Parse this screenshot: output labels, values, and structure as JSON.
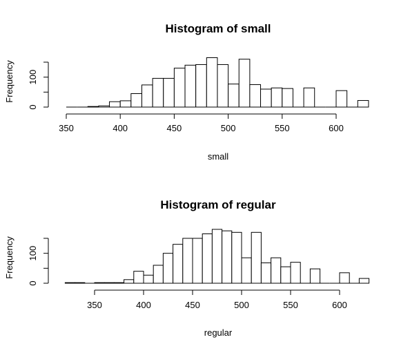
{
  "chart_data": [
    {
      "type": "bar",
      "title": "Histogram of small",
      "xlabel": "small",
      "ylabel": "Frequency",
      "bin_width": 10,
      "bins_start": [
        350,
        360,
        370,
        380,
        390,
        400,
        410,
        420,
        430,
        440,
        450,
        460,
        470,
        480,
        490,
        500,
        510,
        520,
        530,
        540,
        550,
        560,
        570,
        580,
        590,
        600,
        610,
        620
      ],
      "values": [
        0,
        0,
        2,
        4,
        18,
        21,
        45,
        74,
        96,
        96,
        130,
        140,
        142,
        165,
        142,
        77,
        160,
        75,
        60,
        64,
        62,
        0,
        64,
        0,
        0,
        55,
        0,
        22
      ],
      "x_ticks": [
        350,
        400,
        450,
        500,
        550,
        600
      ],
      "y_ticks": [
        0,
        100
      ],
      "xlim": [
        350,
        630
      ],
      "ylim": [
        0,
        150
      ]
    },
    {
      "type": "bar",
      "title": "Histogram of regular",
      "xlabel": "regular",
      "ylabel": "Frequency",
      "bin_width": 10,
      "bins_start": [
        320,
        330,
        340,
        350,
        360,
        370,
        380,
        390,
        400,
        410,
        420,
        430,
        440,
        450,
        460,
        470,
        480,
        490,
        500,
        510,
        520,
        530,
        540,
        550,
        560,
        570,
        580,
        590,
        600,
        610,
        620
      ],
      "values": [
        2,
        2,
        0,
        2,
        2,
        2,
        12,
        40,
        27,
        60,
        100,
        130,
        150,
        150,
        165,
        180,
        175,
        170,
        85,
        170,
        68,
        85,
        55,
        70,
        0,
        48,
        0,
        0,
        35,
        0,
        16
      ],
      "x_ticks": [
        350,
        400,
        450,
        500,
        550,
        600
      ],
      "y_ticks": [
        0,
        100
      ],
      "xlim": [
        320,
        630
      ],
      "ylim": [
        0,
        150
      ]
    }
  ]
}
